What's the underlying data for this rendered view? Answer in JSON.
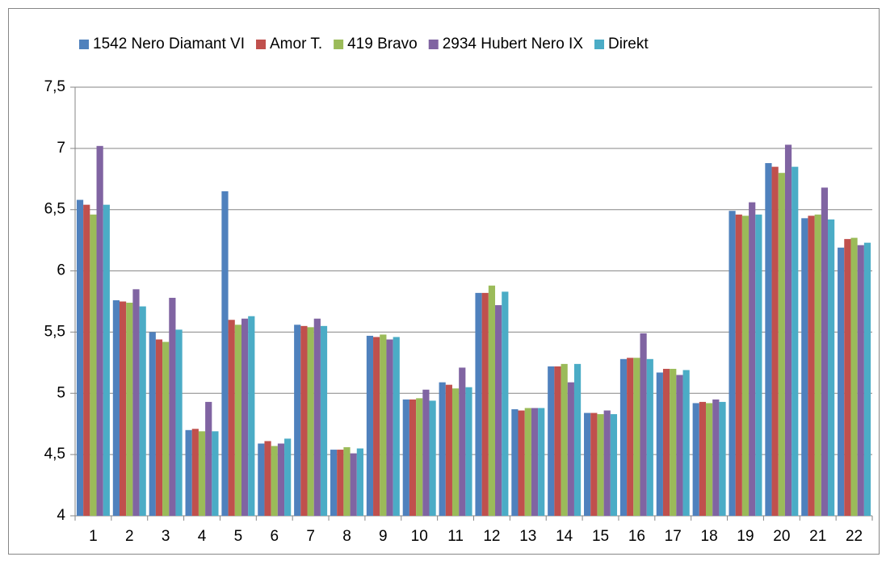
{
  "chart_data": {
    "type": "bar",
    "categories": [
      "1",
      "2",
      "3",
      "4",
      "5",
      "6",
      "7",
      "8",
      "9",
      "10",
      "11",
      "12",
      "13",
      "14",
      "15",
      "16",
      "17",
      "18",
      "19",
      "20",
      "21",
      "22"
    ],
    "series": [
      {
        "name": "1542 Nero Diamant VI",
        "color": "#4f81bd",
        "values": [
          6.58,
          5.76,
          5.5,
          4.7,
          6.65,
          4.59,
          5.56,
          4.54,
          5.47,
          4.95,
          5.09,
          5.82,
          4.87,
          5.22,
          4.84,
          5.28,
          5.17,
          4.92,
          6.49,
          6.88,
          6.43,
          6.19
        ]
      },
      {
        "name": "Amor T.",
        "color": "#c0504d",
        "values": [
          6.54,
          5.75,
          5.44,
          4.71,
          5.6,
          4.61,
          5.55,
          4.54,
          5.46,
          4.95,
          5.07,
          5.82,
          4.86,
          5.22,
          4.84,
          5.29,
          5.2,
          4.93,
          6.46,
          6.85,
          6.45,
          6.26
        ]
      },
      {
        "name": "419 Bravo",
        "color": "#9bbb59",
        "values": [
          6.46,
          5.74,
          5.42,
          4.69,
          5.56,
          4.57,
          5.54,
          4.56,
          5.48,
          4.96,
          5.04,
          5.88,
          4.88,
          5.24,
          4.83,
          5.29,
          5.2,
          4.92,
          6.45,
          6.8,
          6.46,
          6.27
        ]
      },
      {
        "name": "2934 Hubert Nero IX",
        "color": "#8064a2",
        "values": [
          7.02,
          5.85,
          5.78,
          4.93,
          5.61,
          4.59,
          5.61,
          4.51,
          5.44,
          5.03,
          5.21,
          5.72,
          4.88,
          5.09,
          4.86,
          5.49,
          5.15,
          4.95,
          6.56,
          7.03,
          6.68,
          6.21
        ]
      },
      {
        "name": "Direkt",
        "color": "#4bacc6",
        "values": [
          6.54,
          5.71,
          5.52,
          4.69,
          5.63,
          4.63,
          5.55,
          4.55,
          5.46,
          4.94,
          5.05,
          5.83,
          4.88,
          5.24,
          4.83,
          5.28,
          5.19,
          4.93,
          6.46,
          6.85,
          6.42,
          6.23
        ]
      }
    ],
    "ylim": [
      4,
      7.5
    ],
    "yticks": [
      4,
      {
        "value": 4.5,
        "label": "4,5"
      },
      5,
      {
        "value": 5.5,
        "label": "5,5"
      },
      6,
      {
        "value": 6.5,
        "label": "6,5"
      },
      7,
      {
        "value": 7.5,
        "label": "7,5"
      }
    ],
    "grid": true,
    "legend": "top"
  }
}
